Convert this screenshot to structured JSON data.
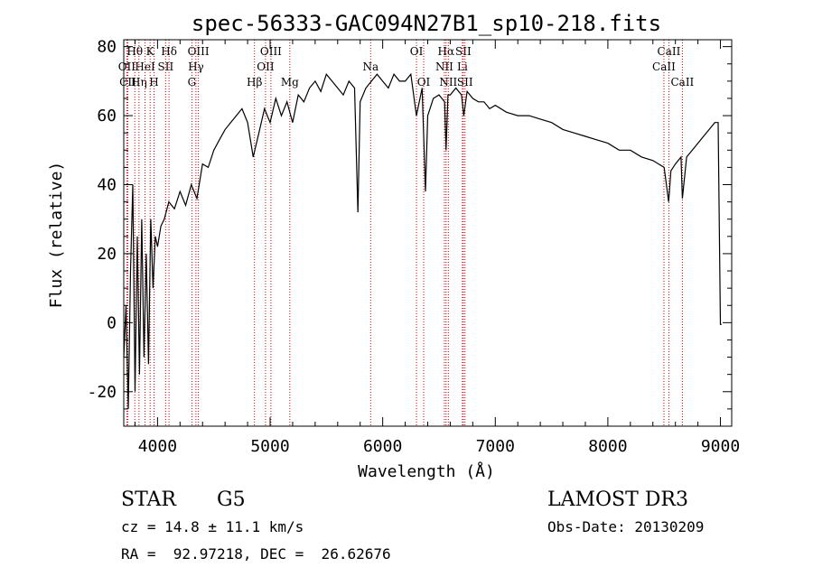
{
  "chart_data": {
    "type": "line",
    "title": "spec-56333-GAC094N27B1_sp10-218.fits",
    "xlabel": "Wavelength (Å)",
    "ylabel": "Flux (relative)",
    "xlim": [
      3700,
      9100
    ],
    "ylim": [
      -30,
      82
    ],
    "xticks": [
      4000,
      5000,
      6000,
      7000,
      8000,
      9000
    ],
    "yticks": [
      -20,
      0,
      20,
      40,
      60,
      80
    ],
    "series": [
      {
        "name": "flux",
        "x": [
          3700,
          3720,
          3740,
          3760,
          3780,
          3800,
          3820,
          3840,
          3860,
          3880,
          3900,
          3920,
          3940,
          3960,
          3980,
          4000,
          4030,
          4060,
          4100,
          4150,
          4200,
          4250,
          4300,
          4350,
          4400,
          4450,
          4500,
          4550,
          4600,
          4650,
          4700,
          4750,
          4800,
          4850,
          4900,
          4950,
          5000,
          5050,
          5100,
          5150,
          5200,
          5250,
          5300,
          5350,
          5400,
          5450,
          5500,
          5550,
          5600,
          5650,
          5700,
          5750,
          5780,
          5800,
          5850,
          5900,
          5950,
          6000,
          6050,
          6100,
          6150,
          6200,
          6250,
          6300,
          6350,
          6380,
          6400,
          6450,
          6500,
          6550,
          6563,
          6580,
          6600,
          6650,
          6700,
          6720,
          6750,
          6800,
          6850,
          6900,
          6950,
          7000,
          7100,
          7200,
          7300,
          7400,
          7500,
          7600,
          7700,
          7800,
          7900,
          8000,
          8100,
          8200,
          8300,
          8400,
          8450,
          8500,
          8540,
          8560,
          8600,
          8650,
          8662,
          8700,
          8750,
          8800,
          8850,
          8900,
          8950,
          8980,
          9000,
          9010
        ],
        "y": [
          -10,
          5,
          -25,
          15,
          40,
          -20,
          25,
          -15,
          30,
          -10,
          20,
          -12,
          30,
          10,
          25,
          22,
          28,
          30,
          35,
          33,
          38,
          34,
          40,
          36,
          46,
          45,
          50,
          53,
          56,
          58,
          60,
          62,
          58,
          48,
          55,
          62,
          58,
          65,
          60,
          64,
          58,
          66,
          64,
          68,
          70,
          67,
          72,
          70,
          68,
          66,
          70,
          68,
          32,
          64,
          68,
          70,
          72,
          70,
          68,
          72,
          70,
          70,
          72,
          60,
          68,
          38,
          60,
          65,
          66,
          64,
          50,
          66,
          66,
          68,
          66,
          60,
          67,
          65,
          64,
          64,
          62,
          63,
          61,
          60,
          60,
          59,
          58,
          56,
          55,
          54,
          53,
          52,
          50,
          50,
          48,
          47,
          46,
          45,
          35,
          44,
          46,
          48,
          36,
          48,
          50,
          52,
          54,
          56,
          58,
          58,
          -0.5,
          -0.5
        ]
      }
    ],
    "spectral_lines": [
      {
        "name": "Hθ",
        "wavelength": 3798,
        "row": 1
      },
      {
        "name": "OII",
        "wavelength": 3727,
        "row": 2
      },
      {
        "name": "CII",
        "wavelength": 3736,
        "row": 3
      },
      {
        "name": "Hη",
        "wavelength": 3835,
        "row": 3
      },
      {
        "name": "HeI",
        "wavelength": 3889,
        "row": 2
      },
      {
        "name": "K",
        "wavelength": 3934,
        "row": 1
      },
      {
        "name": "H",
        "wavelength": 3969,
        "row": 3
      },
      {
        "name": "SII",
        "wavelength": 4072,
        "row": 2
      },
      {
        "name": "Hδ",
        "wavelength": 4102,
        "row": 1
      },
      {
        "name": "OIII",
        "wavelength": 4363,
        "row": 1
      },
      {
        "name": "Hγ",
        "wavelength": 4341,
        "row": 2
      },
      {
        "name": "G",
        "wavelength": 4305,
        "row": 3
      },
      {
        "name": "Hβ",
        "wavelength": 4861,
        "row": 3
      },
      {
        "name": "OIII",
        "wavelength": 5007,
        "row": 1
      },
      {
        "name": "OII",
        "wavelength": 4959,
        "row": 2
      },
      {
        "name": "Mg",
        "wavelength": 5175,
        "row": 3
      },
      {
        "name": "Na",
        "wavelength": 5893,
        "row": 2
      },
      {
        "name": "OI",
        "wavelength": 6300,
        "row": 1
      },
      {
        "name": "OI",
        "wavelength": 6364,
        "row": 3
      },
      {
        "name": "Hα",
        "wavelength": 6563,
        "row": 1
      },
      {
        "name": "NII",
        "wavelength": 6548,
        "row": 2
      },
      {
        "name": "NII",
        "wavelength": 6583,
        "row": 3
      },
      {
        "name": "SII",
        "wavelength": 6716,
        "row": 1
      },
      {
        "name": "Li",
        "wavelength": 6708,
        "row": 2
      },
      {
        "name": "SII",
        "wavelength": 6731,
        "row": 3
      },
      {
        "name": "CaII",
        "wavelength": 8542,
        "row": 1
      },
      {
        "name": "CaII",
        "wavelength": 8498,
        "row": 2
      },
      {
        "name": "CaII",
        "wavelength": 8662,
        "row": 3
      }
    ]
  },
  "info": {
    "object_type": "STAR",
    "subclass": "G5",
    "survey": "LAMOST DR3",
    "cz": "cz = 14.8 ± 11.1 km/s",
    "obs_date": "Obs-Date: 20130209",
    "coords": "RA =  92.97218, DEC =  26.62676"
  }
}
